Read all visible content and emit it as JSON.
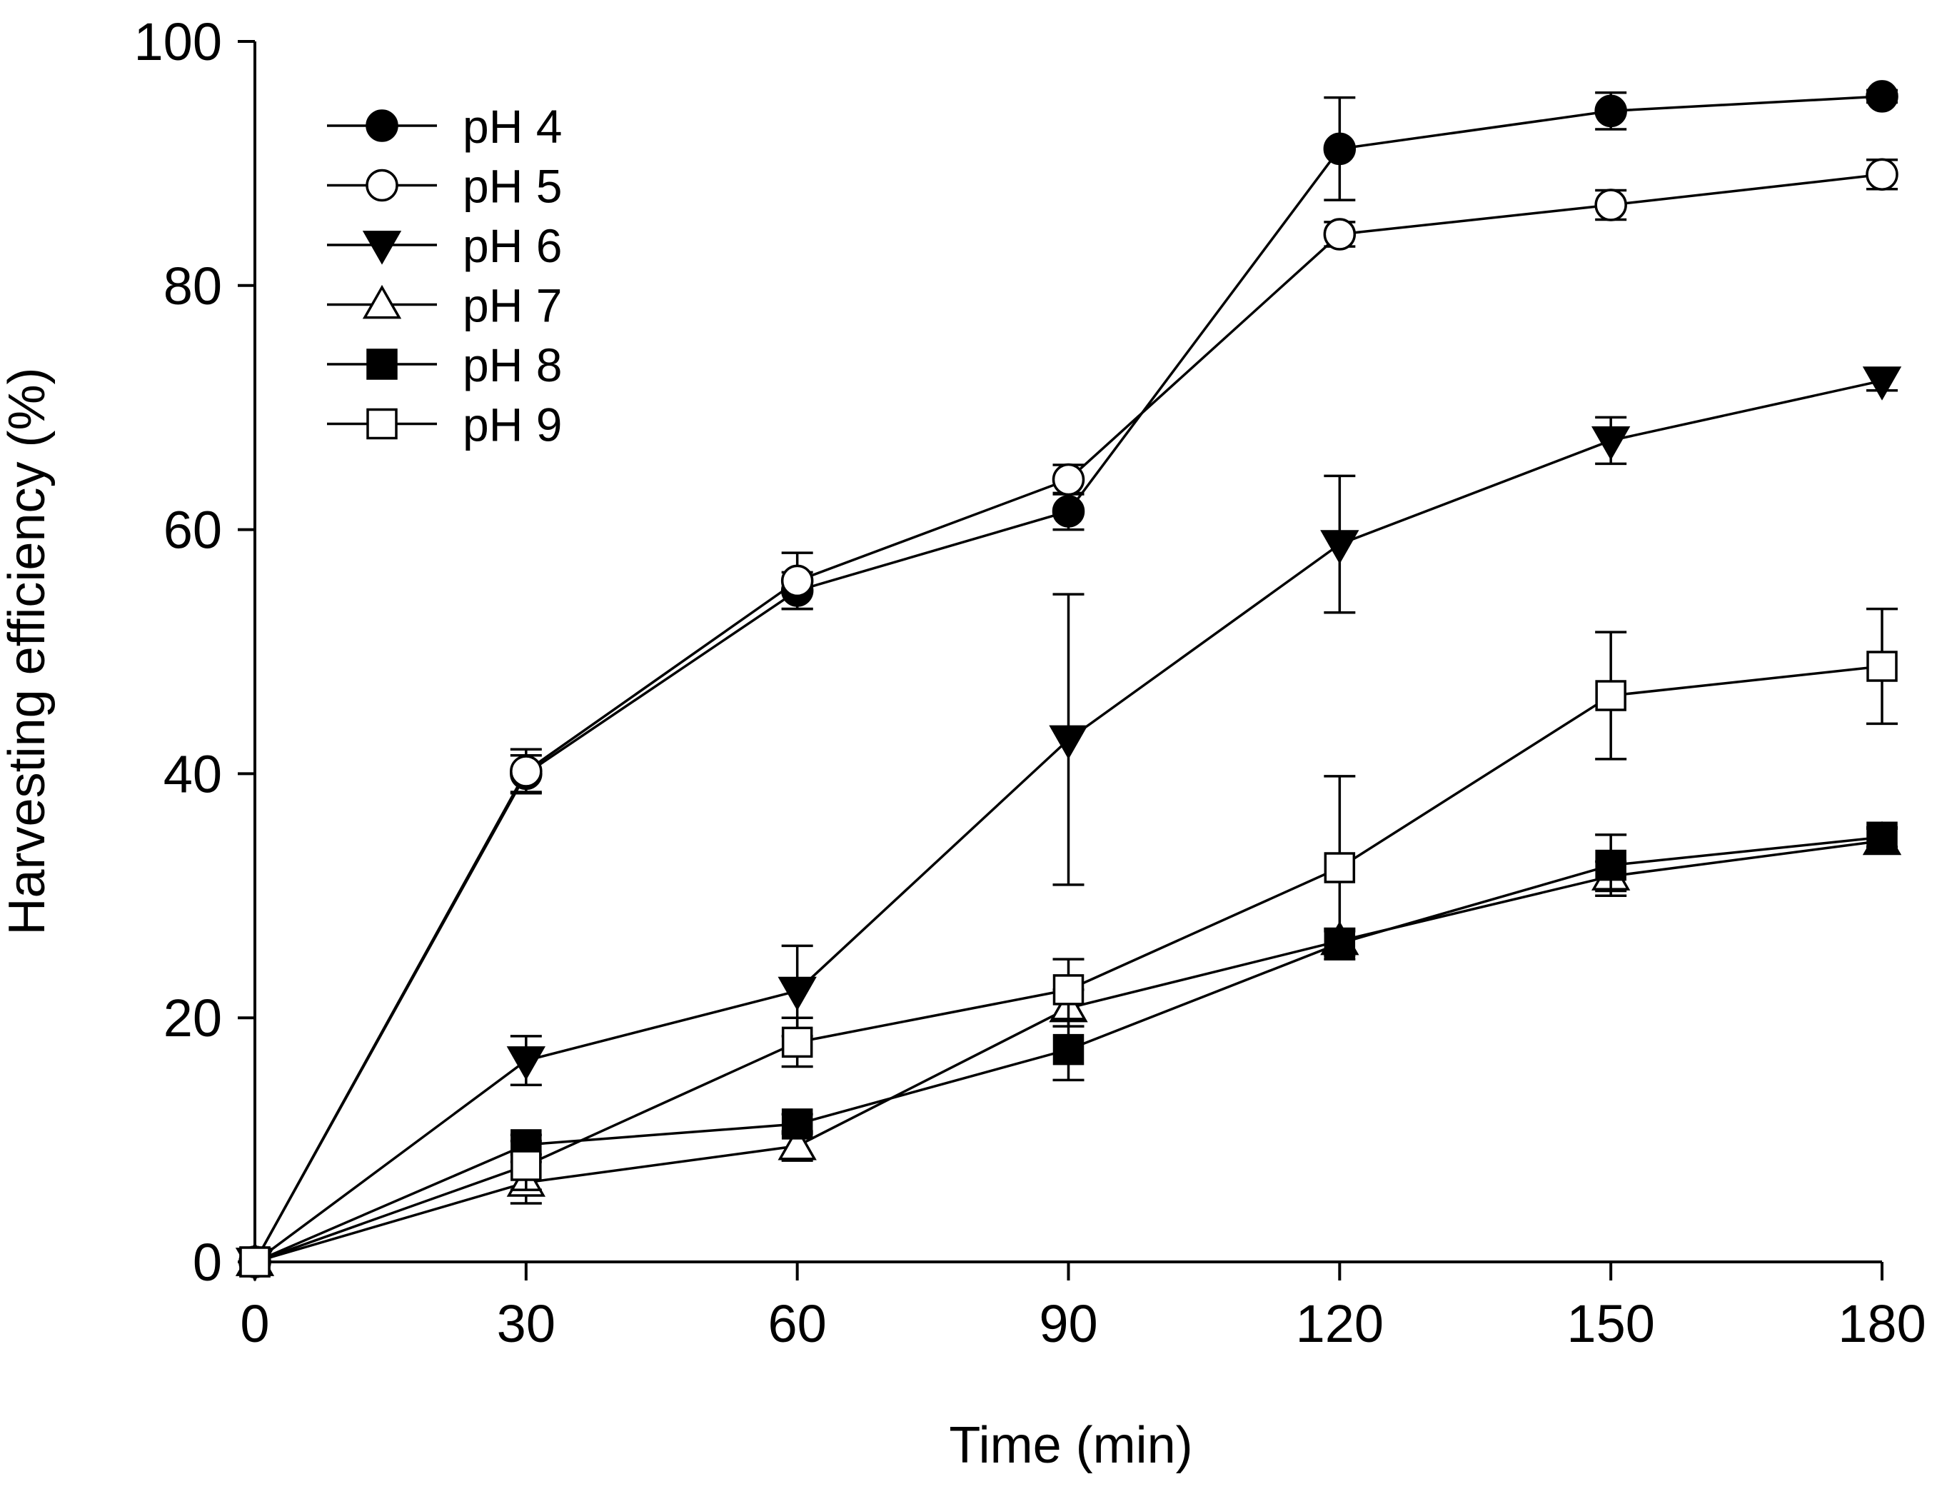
{
  "chart_data": {
    "type": "line",
    "title": "",
    "xlabel": "Time (min)",
    "ylabel": "Harvesting efficiency (%)",
    "xlim": [
      0,
      180
    ],
    "ylim": [
      0,
      100
    ],
    "x_ticks": [
      0,
      30,
      60,
      90,
      120,
      150,
      180
    ],
    "x_tick_labels": [
      "0",
      "30",
      "60",
      "90",
      "120",
      "150",
      "180"
    ],
    "y_ticks": [
      0,
      20,
      40,
      60,
      80,
      100
    ],
    "y_tick_labels": [
      "0",
      "20",
      "40",
      "60",
      "80",
      "100"
    ],
    "grid": false,
    "legend_position": "top-left",
    "x": [
      0,
      30,
      60,
      90,
      120,
      150,
      180
    ],
    "series": [
      {
        "name": "pH 4",
        "marker": "circle",
        "filled": true,
        "values": [
          0,
          40,
          55,
          61.5,
          91.2,
          94.3,
          95.5
        ],
        "errors": [
          0,
          1.5,
          1.5,
          1.5,
          4.2,
          1.5,
          0.5
        ]
      },
      {
        "name": "pH 5",
        "marker": "circle",
        "filled": false,
        "values": [
          0,
          40.2,
          55.8,
          64.1,
          84.2,
          86.6,
          89.1
        ],
        "errors": [
          0,
          1.8,
          2.3,
          1.2,
          1.0,
          1.2,
          1.2
        ]
      },
      {
        "name": "pH 6",
        "marker": "triangle-down",
        "filled": true,
        "values": [
          0,
          16.5,
          22.2,
          42.8,
          58.8,
          67.3,
          72.2
        ],
        "errors": [
          0,
          2.0,
          3.7,
          11.9,
          5.6,
          1.9,
          0.8
        ]
      },
      {
        "name": "pH 7",
        "marker": "triangle-up",
        "filled": false,
        "values": [
          0,
          6.5,
          9.5,
          20.8,
          26.3,
          31.6,
          34.5
        ],
        "errors": [
          0,
          1.7,
          1.2,
          1.5,
          1.0,
          1.2,
          1.0
        ]
      },
      {
        "name": "pH 8",
        "marker": "square",
        "filled": true,
        "values": [
          0,
          9.6,
          11.3,
          17.4,
          26.1,
          32.5,
          34.8
        ],
        "errors": [
          0,
          0.8,
          0.8,
          2.5,
          1.0,
          2.5,
          0.8
        ]
      },
      {
        "name": "pH 9",
        "marker": "square",
        "filled": false,
        "values": [
          0,
          7.9,
          18.0,
          22.3,
          32.3,
          46.4,
          48.8
        ],
        "errors": [
          0,
          2.0,
          2.0,
          2.5,
          7.5,
          5.2,
          4.7
        ]
      }
    ]
  }
}
